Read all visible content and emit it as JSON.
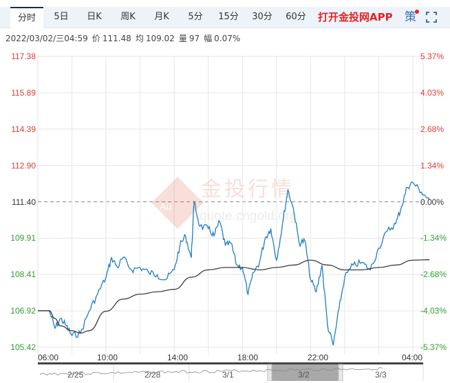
{
  "tabs": [
    {
      "label": "分时",
      "active": true
    },
    {
      "label": "5日"
    },
    {
      "label": "日K"
    },
    {
      "label": "周K"
    },
    {
      "label": "月K"
    },
    {
      "label": "5分"
    },
    {
      "label": "15分"
    },
    {
      "label": "30分"
    },
    {
      "label": "60分"
    }
  ],
  "promo_label": "打开金投网APP",
  "strategy_label": "策",
  "icons": {
    "fullscreen": "fullscreen-icon",
    "notification_dot": "red-dot"
  },
  "info": {
    "datetime": "2022/03/02/三04:59",
    "price_label": "价",
    "price": "111.48",
    "avg_label": "均",
    "avg": "109.02",
    "vol_label": "量",
    "vol": "97",
    "change_label": "幅",
    "change": "0.07%"
  },
  "watermark": {
    "brand": "金投行情",
    "url": "quote.cngold.org",
    "logo": "Au"
  },
  "colors": {
    "up": "#e03a3a",
    "down": "#2e9e2e",
    "neutral": "#333333",
    "price_line": "#1f7cc1",
    "avg_line": "#3a3a3a",
    "grid": "#e6e6e6"
  },
  "navigator": {
    "dates": [
      "2/25",
      "2/28",
      "3/1",
      "3/2",
      "3/3"
    ],
    "selected": "3/2"
  },
  "chart_data": {
    "type": "line",
    "title": "",
    "xlabel": "",
    "ylabel": "",
    "ylim": [
      105.42,
      117.38
    ],
    "prev_close": 111.4,
    "y_ticks_left": [
      "117.38",
      "115.89",
      "114.39",
      "112.90",
      "111.40",
      "109.91",
      "108.41",
      "106.92",
      "105.42"
    ],
    "y_ticks_right": [
      "5.37%",
      "4.03%",
      "2.68%",
      "1.34%",
      "0.00%",
      "-1.34%",
      "-2.68%",
      "-4.03%",
      "-5.37%"
    ],
    "x_ticks": [
      "06:00",
      "10:00",
      "14:00",
      "18:00",
      "22:00",
      "04:00"
    ],
    "grid": true,
    "series": [
      {
        "name": "price",
        "x": [
          "06:00",
          "06:40",
          "07:00",
          "07:20",
          "07:40",
          "08:00",
          "08:30",
          "09:00",
          "09:30",
          "10:00",
          "10:20",
          "10:40",
          "11:00",
          "11:30",
          "12:00",
          "12:30",
          "13:00",
          "13:30",
          "14:00",
          "14:20",
          "14:40",
          "15:00",
          "15:10",
          "15:30",
          "16:00",
          "16:20",
          "16:40",
          "17:00",
          "17:20",
          "17:40",
          "18:00",
          "18:20",
          "18:40",
          "19:00",
          "19:20",
          "19:40",
          "20:00",
          "20:20",
          "20:40",
          "21:00",
          "21:20",
          "21:40",
          "22:00",
          "22:20",
          "22:40",
          "23:00",
          "23:20",
          "23:40",
          "00:00",
          "00:30",
          "01:00",
          "01:30",
          "02:00",
          "02:30",
          "03:00",
          "03:20",
          "03:40",
          "04:00",
          "04:30",
          "04:59"
        ],
        "values": [
          106.92,
          106.92,
          106.2,
          106.6,
          106.3,
          105.9,
          106.0,
          106.9,
          107.6,
          108.3,
          109.1,
          108.7,
          109.1,
          108.6,
          108.7,
          108.5,
          108.4,
          108.2,
          108.6,
          109.6,
          110.0,
          109.1,
          111.4,
          110.4,
          110.3,
          110.0,
          110.6,
          109.6,
          109.7,
          108.8,
          108.7,
          107.6,
          108.5,
          108.9,
          109.9,
          110.3,
          109.0,
          110.4,
          111.9,
          111.1,
          109.7,
          109.8,
          108.2,
          107.7,
          108.8,
          106.3,
          105.5,
          107.0,
          108.3,
          108.8,
          108.9,
          108.6,
          109.5,
          110.2,
          110.5,
          111.2,
          112.0,
          112.2,
          111.8,
          111.48
        ]
      },
      {
        "name": "average",
        "x": [
          "06:00",
          "06:40",
          "07:00",
          "07:20",
          "08:00",
          "08:30",
          "09:00",
          "10:00",
          "11:00",
          "12:00",
          "13:00",
          "14:00",
          "15:00",
          "16:00",
          "17:00",
          "18:00",
          "19:00",
          "20:00",
          "21:00",
          "22:00",
          "23:00",
          "00:00",
          "01:00",
          "02:00",
          "03:00",
          "04:00",
          "04:59"
        ],
        "values": [
          106.92,
          106.92,
          106.6,
          106.3,
          106.1,
          106.0,
          106.1,
          106.9,
          107.4,
          107.6,
          107.7,
          107.8,
          108.3,
          108.6,
          108.7,
          108.7,
          108.6,
          108.7,
          108.8,
          109.0,
          108.8,
          108.6,
          108.6,
          108.7,
          108.8,
          109.0,
          109.02
        ]
      }
    ]
  }
}
